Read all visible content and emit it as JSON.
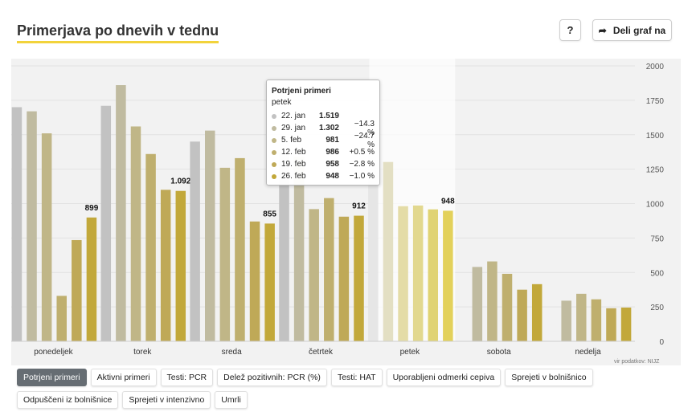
{
  "header": {
    "title": "Primerjava po dnevih v tednu",
    "help_label": "?",
    "share_label": "Deli graf na"
  },
  "source": "vir podatkov: NIJZ",
  "filters": [
    "Potrjeni primeri",
    "Aktivni primeri",
    "Testi: PCR",
    "Delež pozitivnih: PCR (%)",
    "Testi: HAT",
    "Uporabljeni odmerki cepiva",
    "Sprejeti v bolnišnico",
    "Odpuščeni iz bolnišnice",
    "Sprejeti v intenzivno",
    "Umrli"
  ],
  "active_filter": "Potrjeni primeri",
  "tooltip": {
    "title": "Potrjeni primeri",
    "day": "petek",
    "rows": [
      {
        "date": "22. jan",
        "value": "1.519",
        "change": ""
      },
      {
        "date": "29. jan",
        "value": "1.302",
        "change": "−14.3 %"
      },
      {
        "date": "5. feb",
        "value": "981",
        "change": "−24.7 %"
      },
      {
        "date": "12. feb",
        "value": "986",
        "change": "+0.5 %"
      },
      {
        "date": "19. feb",
        "value": "958",
        "change": "−2.8 %"
      },
      {
        "date": "26. feb",
        "value": "948",
        "change": "−1.0 %"
      }
    ]
  },
  "chart_data": {
    "type": "bar",
    "title": "Primerjava po dnevih v tednu",
    "categories": [
      "ponedeljek",
      "torek",
      "sreda",
      "četrtek",
      "petek",
      "sobota",
      "nedelja"
    ],
    "series": [
      {
        "name": "22. jan",
        "color": "#c2c2c2",
        "values": [
          1700,
          1710,
          1450,
          1370,
          1519,
          0,
          0
        ]
      },
      {
        "name": "29. jan",
        "color": "#c0bba0",
        "values": [
          1670,
          1860,
          1530,
          1340,
          1302,
          540,
          295
        ]
      },
      {
        "name": "5. feb",
        "color": "#c0b687",
        "values": [
          1510,
          1560,
          1260,
          960,
          981,
          580,
          345
        ]
      },
      {
        "name": "12. feb",
        "color": "#bfaf6e",
        "values": [
          330,
          1360,
          1330,
          1040,
          986,
          490,
          305
        ]
      },
      {
        "name": "19. feb",
        "color": "#bfa957",
        "values": [
          735,
          1100,
          870,
          905,
          958,
          375,
          240
        ]
      },
      {
        "name": "26. feb",
        "color": "#c2a83a",
        "values": [
          899,
          1092,
          855,
          912,
          948,
          415,
          245
        ]
      }
    ],
    "data_labels": [
      "899",
      "1.092",
      "855",
      "912",
      "948",
      "",
      ""
    ],
    "highlight_category": "petek",
    "ylim": [
      0,
      2000
    ],
    "yticks": [
      "0",
      "250",
      "500",
      "750",
      "1000",
      "1250",
      "1500",
      "1750",
      "2000"
    ],
    "grid": true
  }
}
